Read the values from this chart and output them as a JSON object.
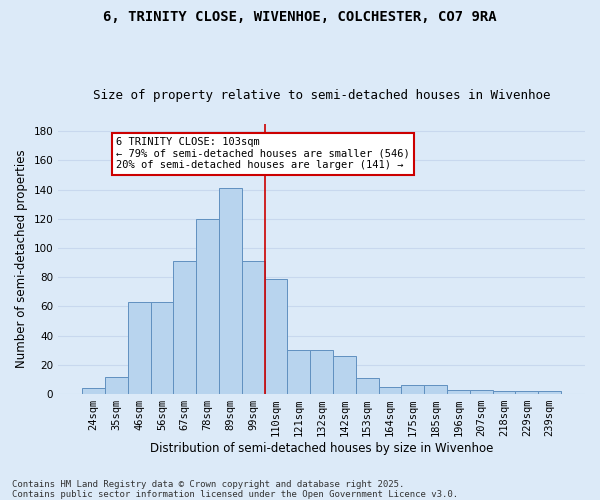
{
  "title_line1": "6, TRINITY CLOSE, WIVENHOE, COLCHESTER, CO7 9RA",
  "title_line2": "Size of property relative to semi-detached houses in Wivenhoe",
  "xlabel": "Distribution of semi-detached houses by size in Wivenhoe",
  "ylabel": "Number of semi-detached properties",
  "bar_labels": [
    "24sqm",
    "35sqm",
    "46sqm",
    "56sqm",
    "67sqm",
    "78sqm",
    "89sqm",
    "99sqm",
    "110sqm",
    "121sqm",
    "132sqm",
    "142sqm",
    "153sqm",
    "164sqm",
    "175sqm",
    "185sqm",
    "196sqm",
    "207sqm",
    "218sqm",
    "229sqm",
    "239sqm"
  ],
  "bar_values": [
    4,
    12,
    63,
    63,
    91,
    120,
    141,
    91,
    79,
    30,
    30,
    26,
    11,
    5,
    6,
    6,
    3,
    3,
    2,
    2,
    2
  ],
  "bar_color": "#b8d4ee",
  "bar_edge_color": "#6090c0",
  "background_color": "#dceaf8",
  "grid_color": "#c8d8ee",
  "ylim_max": 185,
  "yticks": [
    0,
    20,
    40,
    60,
    80,
    100,
    120,
    140,
    160,
    180
  ],
  "annotation_text": "6 TRINITY CLOSE: 103sqm\n← 79% of semi-detached houses are smaller (546)\n20% of semi-detached houses are larger (141) →",
  "vline_color": "#cc0000",
  "annotation_bg": "#ffffff",
  "annotation_edge_color": "#cc0000",
  "footnote": "Contains HM Land Registry data © Crown copyright and database right 2025.\nContains public sector information licensed under the Open Government Licence v3.0.",
  "title_fontsize": 10,
  "subtitle_fontsize": 9,
  "tick_fontsize": 7.5,
  "axis_label_fontsize": 8.5,
  "annotation_fontsize": 7.5,
  "footnote_fontsize": 6.5
}
